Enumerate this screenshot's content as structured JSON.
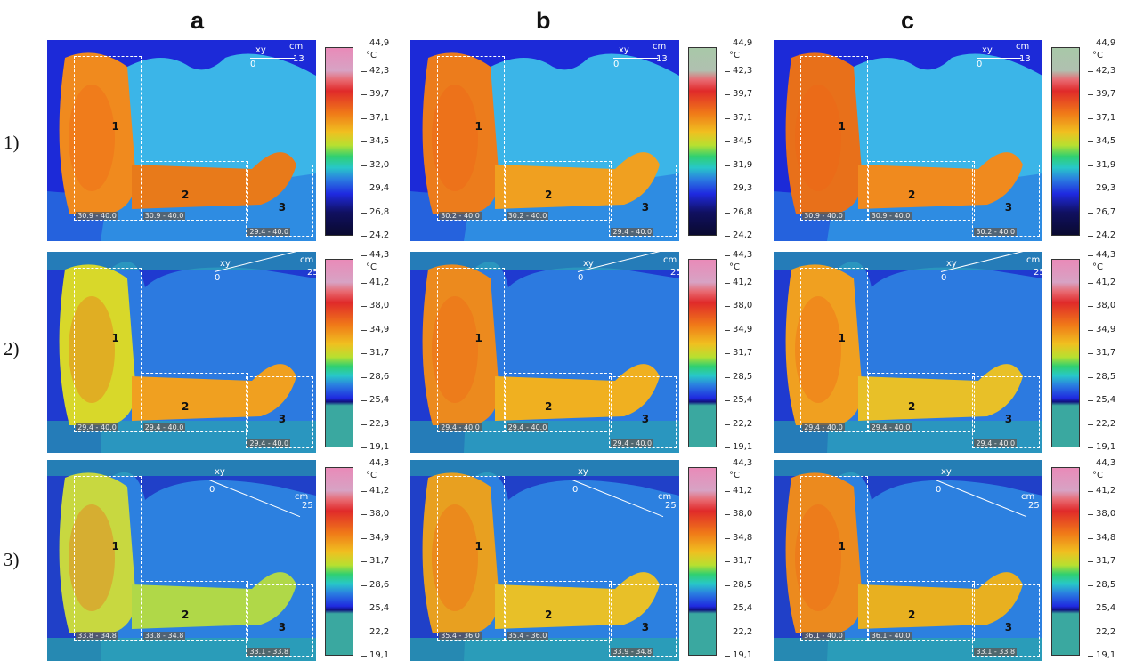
{
  "columns": [
    "a",
    "b",
    "c"
  ],
  "rows": [
    "1)",
    "2)",
    "3)"
  ],
  "unit": "°C",
  "scale": {
    "r1": {
      "xy": "xy",
      "zero": "0",
      "cm": "cm",
      "length": "13"
    },
    "r2": {
      "xy": "xy",
      "zero": "0",
      "cm": "cm",
      "length": "25"
    },
    "r3": {
      "xy": "xy",
      "zero": "0",
      "cm": "cm",
      "length": "25"
    }
  },
  "colorbar_ticks": {
    "r1a": [
      "44,9",
      "42,3",
      "39,7",
      "37,1",
      "34,5",
      "32,0",
      "29,4",
      "26,8",
      "24,2"
    ],
    "r1b": [
      "44,9",
      "42,3",
      "39,7",
      "37,1",
      "34,5",
      "31,9",
      "29,3",
      "26,8",
      "24,2"
    ],
    "r1c": [
      "44,9",
      "42,3",
      "39,7",
      "37,1",
      "34,5",
      "31,9",
      "29,3",
      "26,7",
      "24,2"
    ],
    "r2a": [
      "44,3",
      "41,2",
      "38,0",
      "34,9",
      "31,7",
      "28,6",
      "25,4",
      "22,3",
      "19,1"
    ],
    "r2b": [
      "44,3",
      "41,2",
      "38,0",
      "34,9",
      "31,7",
      "28,5",
      "25,4",
      "22,2",
      "19,1"
    ],
    "r2c": [
      "44,3",
      "41,2",
      "38,0",
      "34,9",
      "31,7",
      "28,5",
      "25,4",
      "22,2",
      "19,1"
    ],
    "r3a": [
      "44,3",
      "41,2",
      "38,0",
      "34,9",
      "31,7",
      "28,6",
      "25,4",
      "22,2",
      "19,1"
    ],
    "r3b": [
      "44,3",
      "41,2",
      "38,0",
      "34,8",
      "31,7",
      "28,5",
      "25,4",
      "22,2",
      "19,1"
    ],
    "r3c": [
      "44,3",
      "41,2",
      "38,0",
      "34,8",
      "31,7",
      "28,5",
      "25,4",
      "22,2",
      "19,1"
    ]
  },
  "regions": {
    "r1a": [
      {
        "num": "1",
        "range": "30.9 - 40.0"
      },
      {
        "num": "2",
        "range": "30.9 - 40.0"
      },
      {
        "num": "3",
        "range": "29.4 - 40.0"
      }
    ],
    "r1b": [
      {
        "num": "1",
        "range": "30.2 - 40.0"
      },
      {
        "num": "2",
        "range": "30.2 - 40.0"
      },
      {
        "num": "3",
        "range": "29.4 - 40.0"
      }
    ],
    "r1c": [
      {
        "num": "1",
        "range": "30.9 - 40.0"
      },
      {
        "num": "2",
        "range": "30.9 - 40.0"
      },
      {
        "num": "3",
        "range": "30.2 - 40.0"
      }
    ],
    "r2a": [
      {
        "num": "1",
        "range": "29.4 - 40.0"
      },
      {
        "num": "2",
        "range": "29.4 - 40.0"
      },
      {
        "num": "3",
        "range": "29.4 - 40.0"
      }
    ],
    "r2b": [
      {
        "num": "1",
        "range": "29.4 - 40.0"
      },
      {
        "num": "2",
        "range": "29.4 - 40.0"
      },
      {
        "num": "3",
        "range": "29.4 - 40.0"
      }
    ],
    "r2c": [
      {
        "num": "1",
        "range": "29.4 - 40.0"
      },
      {
        "num": "2",
        "range": "29.4 - 40.0"
      },
      {
        "num": "3",
        "range": "29.4 - 40.0"
      }
    ],
    "r3a": [
      {
        "num": "1",
        "range": "33.8 - 34.8"
      },
      {
        "num": "2",
        "range": "33.8 - 34.8"
      },
      {
        "num": "3",
        "range": "33.1 - 33.8"
      }
    ],
    "r3b": [
      {
        "num": "1",
        "range": "35.4 - 36.0"
      },
      {
        "num": "2",
        "range": "35.4 - 36.0"
      },
      {
        "num": "3",
        "range": "33.9 - 34.8"
      }
    ],
    "r3c": [
      {
        "num": "1",
        "range": "36.1 - 40.0"
      },
      {
        "num": "2",
        "range": "36.1 - 40.0"
      },
      {
        "num": "3",
        "range": "33.1 - 33.8"
      }
    ]
  },
  "colors": {
    "background_blue": "#1a2bd8",
    "body_cyan": "#35b7e8",
    "arm_orange": "#f08a1e",
    "arm_yellow": "#d8d82a",
    "teal": "#3aa8a0"
  }
}
